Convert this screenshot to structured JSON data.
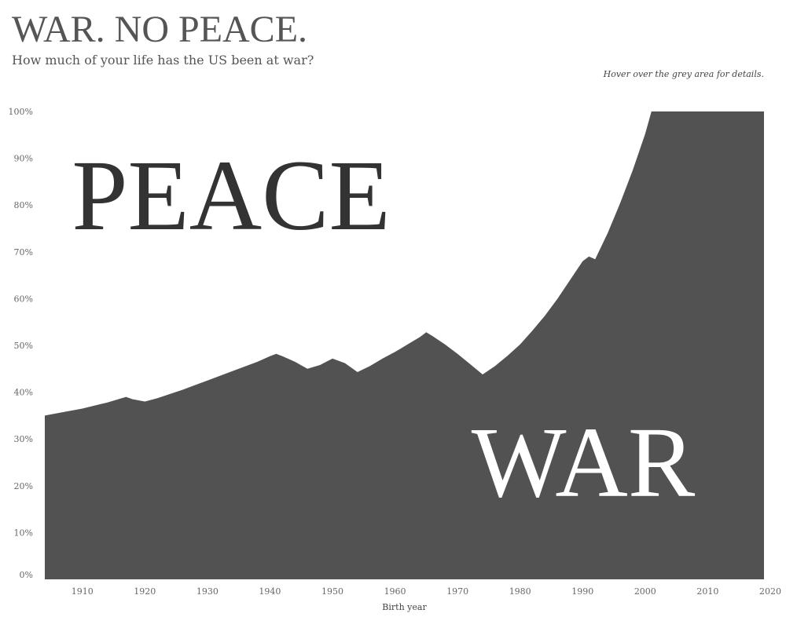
{
  "header": {
    "title": "WAR. NO PEACE.",
    "subtitle": "How much of your life has the US been at war?",
    "hint": "Hover over the grey area for details."
  },
  "colors": {
    "war": "#525252",
    "peace_label": "#333333",
    "war_label": "#ffffff",
    "text": "#555555"
  },
  "chart_data": {
    "type": "area",
    "xlabel": "Birth year",
    "ylabel": "",
    "xlim": [
      1904,
      2019
    ],
    "ylim": [
      0,
      100
    ],
    "x_ticks": [
      1910,
      1920,
      1930,
      1940,
      1950,
      1960,
      1970,
      1980,
      1990,
      2000,
      2010,
      2020
    ],
    "y_ticks": [
      0,
      10,
      20,
      30,
      40,
      50,
      60,
      70,
      80,
      90,
      100
    ],
    "y_tick_suffix": "%",
    "annotations": {
      "peace": "PEACE",
      "war": "WAR"
    },
    "x": [
      1904,
      1906,
      1910,
      1914,
      1917,
      1918,
      1920,
      1922,
      1926,
      1930,
      1934,
      1938,
      1940,
      1941,
      1942,
      1944,
      1946,
      1948,
      1950,
      1952,
      1954,
      1956,
      1958,
      1960,
      1962,
      1964,
      1965,
      1966,
      1968,
      1970,
      1972,
      1974,
      1976,
      1978,
      1980,
      1982,
      1984,
      1986,
      1988,
      1990,
      1991,
      1992,
      1994,
      1996,
      1998,
      2000,
      2001,
      2005,
      2010,
      2015,
      2019
    ],
    "values": [
      35,
      35.5,
      36.5,
      37.8,
      39,
      38.5,
      38,
      38.7,
      40.5,
      42.5,
      44.5,
      46.5,
      47.7,
      48.2,
      47.7,
      46.5,
      45,
      45.8,
      47.2,
      46.2,
      44.3,
      45.6,
      47.2,
      48.6,
      50.2,
      51.8,
      52.8,
      52,
      50.2,
      48.2,
      46,
      43.8,
      45.6,
      47.8,
      50.2,
      53.2,
      56.4,
      60,
      64,
      68,
      69,
      68.4,
      74,
      80.4,
      87.4,
      95.2,
      100,
      100,
      100,
      100,
      100
    ]
  }
}
